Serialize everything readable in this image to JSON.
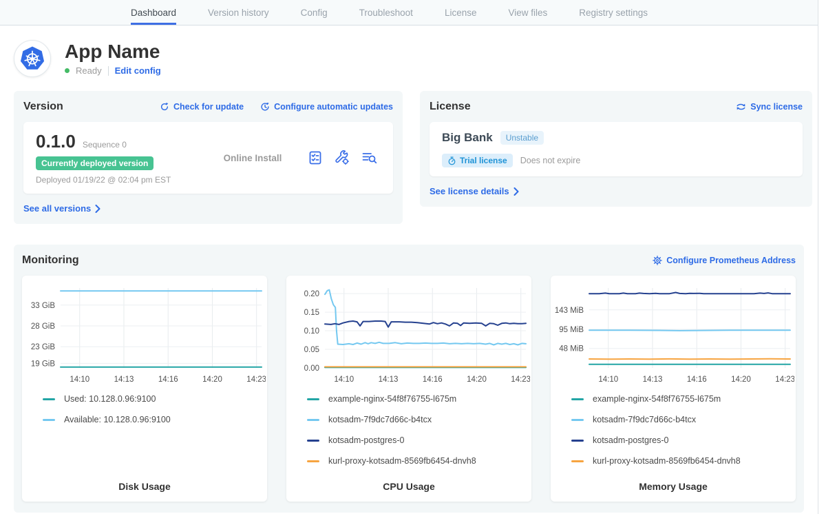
{
  "nav": {
    "tabs": [
      {
        "label": "Dashboard",
        "active": true
      },
      {
        "label": "Version history",
        "active": false
      },
      {
        "label": "Config",
        "active": false
      },
      {
        "label": "Troubleshoot",
        "active": false
      },
      {
        "label": "License",
        "active": false
      },
      {
        "label": "View files",
        "active": false
      },
      {
        "label": "Registry settings",
        "active": false
      }
    ]
  },
  "header": {
    "app_name": "App Name",
    "status": "Ready",
    "edit_config_label": "Edit config",
    "app_icon": "kubernetes-logo"
  },
  "version_card": {
    "title": "Version",
    "check_update_label": "Check for update",
    "configure_updates_label": "Configure automatic updates",
    "version_number": "0.1.0",
    "sequence": "Sequence 0",
    "deployed_badge": "Currently deployed version",
    "deployed_at": "Deployed 01/19/22 @ 02:04 pm EST",
    "install_type": "Online Install",
    "action_icons": [
      "preflight-checks-icon",
      "edit-config-wrench-icon",
      "deploy-logs-icon"
    ],
    "see_all_label": "See all versions"
  },
  "license_card": {
    "title": "License",
    "sync_label": "Sync license",
    "customer_name": "Big Bank",
    "channel": "Unstable",
    "type_badge": "Trial license",
    "expiry": "Does not expire",
    "details_label": "See license details"
  },
  "monitoring": {
    "title": "Monitoring",
    "configure_label": "Configure Prometheus Address"
  },
  "colors": {
    "link_blue": "#2e6be6",
    "tab_underline": "#3f6fe4",
    "status_green": "#44bb66",
    "deployed_badge_green": "#47c392",
    "series_teal": "#23a5a5",
    "series_light_blue": "#74c8f0",
    "series_navy": "#25418f",
    "series_orange": "#f7a440"
  },
  "chart_data": [
    {
      "type": "line",
      "title": "Disk Usage",
      "ylim": [
        17.9,
        37.1
      ],
      "yticks": [
        {
          "value": 33,
          "label": "33 GiB"
        },
        {
          "value": 28,
          "label": "28 GiB"
        },
        {
          "value": 23,
          "label": "23 GiB"
        },
        {
          "value": 19,
          "label": "19 GiB"
        }
      ],
      "xticks": [
        {
          "pos": 0.095,
          "label": "14:10"
        },
        {
          "pos": 0.315,
          "label": "14:13"
        },
        {
          "pos": 0.535,
          "label": "14:16"
        },
        {
          "pos": 0.755,
          "label": "14:20"
        },
        {
          "pos": 0.975,
          "label": "14:23"
        }
      ],
      "series": [
        {
          "name": "Used: 10.128.0.96:9100",
          "color": "#23a5a5",
          "points": [
            [
              0,
              18.1
            ],
            [
              1,
              18.1
            ]
          ]
        },
        {
          "name": "Available: 10.128.0.96:9100",
          "color": "#74c8f0",
          "points": [
            [
              0,
              36.4
            ],
            [
              1,
              36.4
            ]
          ]
        }
      ]
    },
    {
      "type": "line",
      "title": "CPU Usage",
      "ylim": [
        0,
        0.215
      ],
      "yticks": [
        {
          "value": 0.2,
          "label": "0.20"
        },
        {
          "value": 0.15,
          "label": "0.15"
        },
        {
          "value": 0.1,
          "label": "0.10"
        },
        {
          "value": 0.05,
          "label": "0.05"
        },
        {
          "value": 0,
          "label": "0.00"
        }
      ],
      "xticks": [
        {
          "pos": 0.095,
          "label": "14:10"
        },
        {
          "pos": 0.315,
          "label": "14:13"
        },
        {
          "pos": 0.535,
          "label": "14:16"
        },
        {
          "pos": 0.755,
          "label": "14:20"
        },
        {
          "pos": 0.975,
          "label": "14:23"
        }
      ],
      "series": [
        {
          "name": "example-nginx-54f8f76755-l675m",
          "color": "#23a5a5",
          "points": [
            [
              0,
              0.0015
            ],
            [
              1,
              0.0015
            ]
          ]
        },
        {
          "name": "kotsadm-7f9dc7d66c-b4tcx",
          "color": "#74c8f0",
          "points": [
            [
              0,
              0.198
            ],
            [
              0.012,
              0.208
            ],
            [
              0.022,
              0.21
            ],
            [
              0.032,
              0.186
            ],
            [
              0.042,
              0.17
            ],
            [
              0.052,
              0.163
            ],
            [
              0.058,
              0.1
            ],
            [
              0.064,
              0.064
            ],
            [
              0.09,
              0.063
            ],
            [
              0.12,
              0.065
            ],
            [
              0.14,
              0.063
            ],
            [
              0.16,
              0.067
            ],
            [
              0.18,
              0.064
            ],
            [
              0.2,
              0.068
            ],
            [
              0.215,
              0.065
            ],
            [
              0.23,
              0.068
            ],
            [
              0.25,
              0.066
            ],
            [
              0.27,
              0.069
            ],
            [
              0.29,
              0.066
            ],
            [
              0.32,
              0.066
            ],
            [
              0.35,
              0.068
            ],
            [
              0.38,
              0.065
            ],
            [
              0.41,
              0.067
            ],
            [
              0.44,
              0.066
            ],
            [
              0.47,
              0.066
            ],
            [
              0.5,
              0.067
            ],
            [
              0.53,
              0.066
            ],
            [
              0.56,
              0.066
            ],
            [
              0.59,
              0.067
            ],
            [
              0.62,
              0.065
            ],
            [
              0.65,
              0.066
            ],
            [
              0.68,
              0.065
            ],
            [
              0.71,
              0.066
            ],
            [
              0.74,
              0.065
            ],
            [
              0.77,
              0.066
            ],
            [
              0.8,
              0.064
            ],
            [
              0.82,
              0.066
            ],
            [
              0.84,
              0.062
            ],
            [
              0.86,
              0.066
            ],
            [
              0.88,
              0.064
            ],
            [
              0.9,
              0.066
            ],
            [
              0.92,
              0.063
            ],
            [
              0.94,
              0.065
            ],
            [
              0.96,
              0.062
            ],
            [
              0.98,
              0.066
            ],
            [
              1,
              0.065
            ]
          ]
        },
        {
          "name": "kotsadm-postgres-0",
          "color": "#25418f",
          "points": [
            [
              0,
              0.118
            ],
            [
              0.03,
              0.117
            ],
            [
              0.05,
              0.119
            ],
            [
              0.07,
              0.117
            ],
            [
              0.09,
              0.121
            ],
            [
              0.12,
              0.125
            ],
            [
              0.14,
              0.126
            ],
            [
              0.16,
              0.124
            ],
            [
              0.175,
              0.113
            ],
            [
              0.19,
              0.125
            ],
            [
              0.22,
              0.125
            ],
            [
              0.25,
              0.126
            ],
            [
              0.28,
              0.126
            ],
            [
              0.3,
              0.125
            ],
            [
              0.315,
              0.11
            ],
            [
              0.33,
              0.124
            ],
            [
              0.37,
              0.124
            ],
            [
              0.4,
              0.123
            ],
            [
              0.43,
              0.123
            ],
            [
              0.46,
              0.122
            ],
            [
              0.49,
              0.12
            ],
            [
              0.52,
              0.118
            ],
            [
              0.54,
              0.122
            ],
            [
              0.56,
              0.119
            ],
            [
              0.58,
              0.121
            ],
            [
              0.6,
              0.118
            ],
            [
              0.62,
              0.113
            ],
            [
              0.64,
              0.121
            ],
            [
              0.66,
              0.12
            ],
            [
              0.675,
              0.114
            ],
            [
              0.69,
              0.121
            ],
            [
              0.72,
              0.12
            ],
            [
              0.75,
              0.121
            ],
            [
              0.78,
              0.12
            ],
            [
              0.8,
              0.113
            ],
            [
              0.82,
              0.12
            ],
            [
              0.84,
              0.119
            ],
            [
              0.86,
              0.115
            ],
            [
              0.88,
              0.12
            ],
            [
              0.9,
              0.121
            ],
            [
              0.92,
              0.119
            ],
            [
              0.94,
              0.12
            ],
            [
              0.96,
              0.119
            ],
            [
              0.98,
              0.119
            ],
            [
              1,
              0.12
            ]
          ]
        },
        {
          "name": "kurl-proxy-kotsadm-8569fb6454-dnvh8",
          "color": "#f7a440",
          "points": [
            [
              0,
              0.003
            ],
            [
              1,
              0.003
            ]
          ]
        }
      ]
    },
    {
      "type": "line",
      "title": "Memory Usage",
      "ylim": [
        0,
        197
      ],
      "yticks": [
        {
          "value": 143,
          "label": "143 MiB"
        },
        {
          "value": 95,
          "label": "95 MiB"
        },
        {
          "value": 48,
          "label": "48 MiB"
        }
      ],
      "xticks": [
        {
          "pos": 0.095,
          "label": "14:10"
        },
        {
          "pos": 0.315,
          "label": "14:13"
        },
        {
          "pos": 0.535,
          "label": "14:16"
        },
        {
          "pos": 0.755,
          "label": "14:20"
        },
        {
          "pos": 0.975,
          "label": "14:23"
        }
      ],
      "series": [
        {
          "name": "example-nginx-54f8f76755-l675m",
          "color": "#23a5a5",
          "points": [
            [
              0,
              9
            ],
            [
              1,
              9
            ]
          ]
        },
        {
          "name": "kotsadm-7f9dc7d66c-b4tcx",
          "color": "#74c8f0",
          "points": [
            [
              0,
              93
            ],
            [
              0.2,
              93
            ],
            [
              0.35,
              92.5
            ],
            [
              0.45,
              91.8
            ],
            [
              0.55,
              92.4
            ],
            [
              0.7,
              93
            ],
            [
              1,
              93
            ]
          ]
        },
        {
          "name": "kotsadm-postgres-0",
          "color": "#25418f",
          "points": [
            [
              0,
              183
            ],
            [
              0.05,
              183
            ],
            [
              0.08,
              184.5
            ],
            [
              0.1,
              183
            ],
            [
              0.15,
              183
            ],
            [
              0.17,
              184.5
            ],
            [
              0.19,
              183
            ],
            [
              0.23,
              183
            ],
            [
              0.25,
              184.5
            ],
            [
              0.27,
              183.5
            ],
            [
              0.3,
              183
            ],
            [
              0.33,
              184
            ],
            [
              0.35,
              183
            ],
            [
              0.4,
              183
            ],
            [
              0.43,
              186
            ],
            [
              0.45,
              183.5
            ],
            [
              0.48,
              183
            ],
            [
              0.5,
              184
            ],
            [
              0.52,
              183.5
            ],
            [
              0.55,
              184
            ],
            [
              0.57,
              183
            ],
            [
              0.62,
              183
            ],
            [
              0.68,
              183
            ],
            [
              0.72,
              183
            ],
            [
              0.78,
              183
            ],
            [
              0.82,
              183
            ],
            [
              0.85,
              184.5
            ],
            [
              0.87,
              183.5
            ],
            [
              0.89,
              185
            ],
            [
              0.91,
              183
            ],
            [
              0.95,
              183
            ],
            [
              1,
              183
            ]
          ]
        },
        {
          "name": "kurl-proxy-kotsadm-8569fb6454-dnvh8",
          "color": "#f7a440",
          "points": [
            [
              0,
              22
            ],
            [
              0.1,
              21.5
            ],
            [
              0.2,
              22
            ],
            [
              0.3,
              21.8
            ],
            [
              0.4,
              22.3
            ],
            [
              0.5,
              21.8
            ],
            [
              0.6,
              22
            ],
            [
              0.7,
              21.6
            ],
            [
              0.8,
              22
            ],
            [
              0.9,
              22.4
            ],
            [
              1,
              22
            ]
          ]
        }
      ]
    }
  ]
}
